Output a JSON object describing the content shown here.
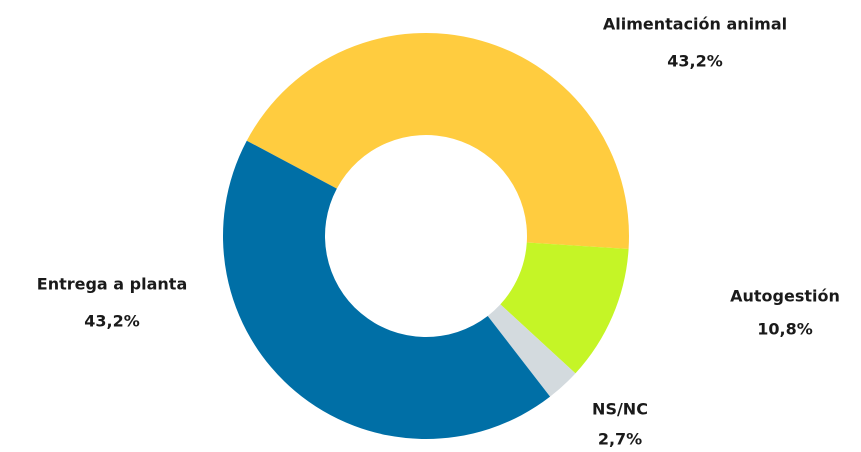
{
  "chart_data": {
    "type": "donut",
    "categories": [
      "Alimentación animal",
      "Autogestión",
      "NS/NC",
      "Entrega a planta"
    ],
    "values": [
      43.2,
      10.8,
      2.7,
      43.2
    ],
    "value_labels": [
      "43,2%",
      "10,8%",
      "2,7%",
      "43,2%"
    ],
    "colors": [
      "#FFCC3F",
      "#C5F526",
      "#D3DADE",
      "#006FA6"
    ]
  }
}
